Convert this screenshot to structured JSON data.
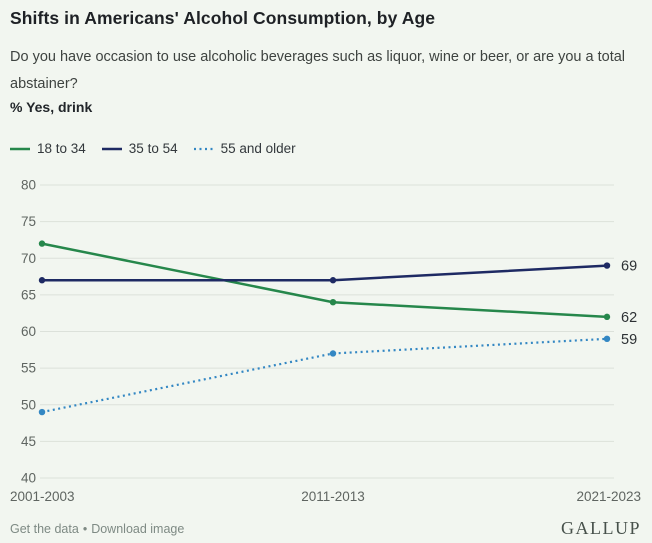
{
  "title": "Shifts in Americans' Alcohol Consumption, by Age",
  "subtitle": "Do you have occasion to use alcoholic beverages such as liquor, wine or beer, or are you a total abstainer?",
  "measure_label": "% Yes, drink",
  "footer": {
    "get_data_label": "Get the data",
    "separator": "•",
    "download_label": "Download image",
    "brand": "GALLUP"
  },
  "colors": {
    "background": "#f2f6f0",
    "green": "#26874b",
    "navy": "#1e2a63",
    "blue": "#3387c3",
    "gridline": "#dce1da",
    "axis_text": "#5f6561",
    "value_label_text": "#2d3134"
  },
  "chart_data": {
    "type": "line",
    "x": [
      "2001-2003",
      "2011-2013",
      "2021-2023"
    ],
    "series": [
      {
        "name": "18 to 34",
        "values": [
          72,
          64,
          62
        ],
        "color_key": "green",
        "style": "solid",
        "end_label": "62"
      },
      {
        "name": "35 to 54",
        "values": [
          67,
          67,
          69
        ],
        "color_key": "navy",
        "style": "solid",
        "end_label": "69"
      },
      {
        "name": "55 and older",
        "values": [
          49,
          57,
          59
        ],
        "color_key": "blue",
        "style": "dotted",
        "end_label": "59"
      }
    ],
    "ylim": [
      40,
      80
    ],
    "yticks": [
      40,
      45,
      50,
      55,
      60,
      65,
      70,
      75,
      80
    ],
    "grid": true,
    "legend_position": "top"
  }
}
